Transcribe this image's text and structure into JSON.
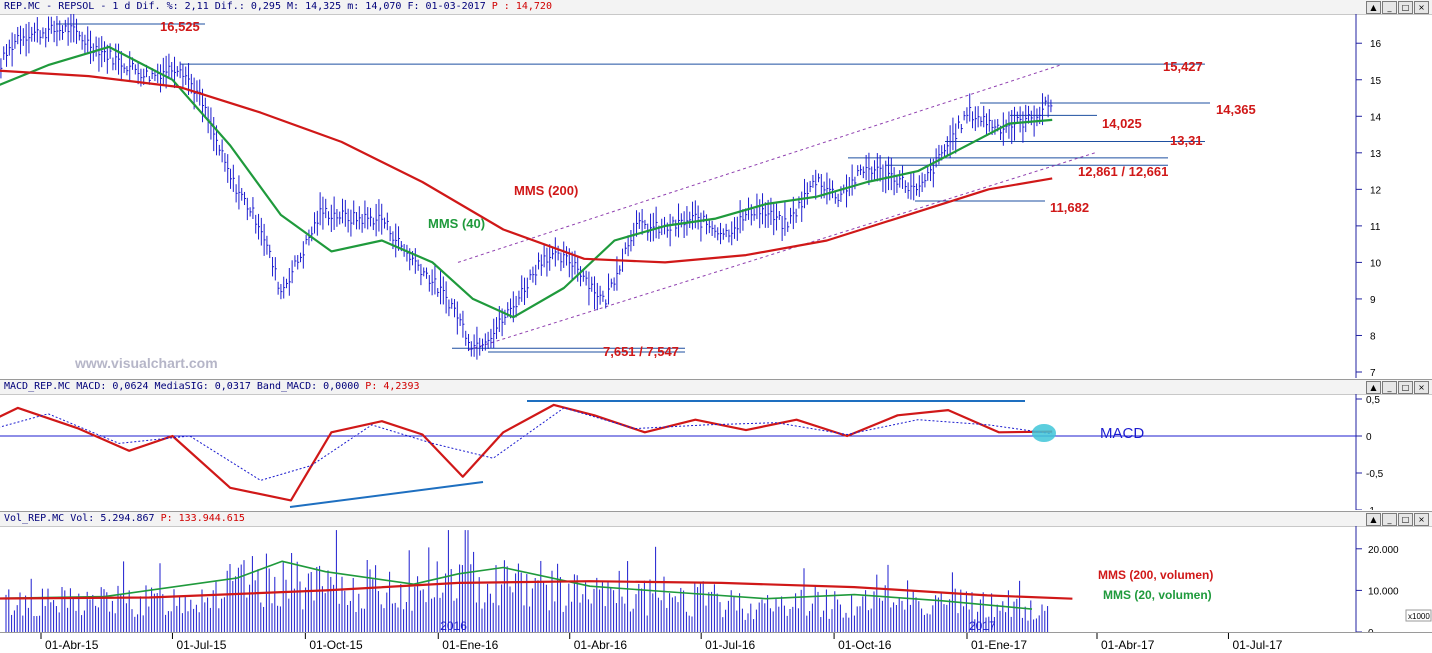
{
  "window": {
    "price_header": {
      "symbol": "REP.MC",
      "name": "REPSOL",
      "period": "1 d",
      "dif_pct": "Dif. %: 2,11",
      "dif": "Dif.: 0,295",
      "max": "M: 14,325",
      "min": "m: 14,070",
      "date": "F: 01-03-2017",
      "price": "P : 14,720"
    },
    "macd_header": {
      "label": "MACD_REP.MC",
      "macd": "MACD: 0,0624",
      "signal": "MediaSIG: 0,0317",
      "band": "Band_MACD: 0,0000",
      "price": "P: 4,2393"
    },
    "volume_header": {
      "label": "Vol_REP.MC",
      "vol": "Vol: 5.294.867",
      "price": "P: 133.944.615"
    },
    "buttons": {
      "up": "▲",
      "min": "_",
      "max": "□",
      "close": "×"
    },
    "watermark": "www.visualchart.com"
  },
  "chart_data": [
    {
      "type": "line",
      "title": "REP.MC - REPSOL",
      "series": [
        {
          "name": "REP.MC",
          "color": "#1c1ccf",
          "x": [
            "2015-02-09",
            "2015-03-02",
            "2015-03-16",
            "2015-04-20",
            "2015-05-04",
            "2015-05-25",
            "2015-06-15",
            "2015-07-06",
            "2015-07-20",
            "2015-08-10",
            "2015-08-31",
            "2015-09-14",
            "2015-09-28",
            "2015-10-12",
            "2015-11-02",
            "2015-11-23",
            "2015-12-07",
            "2015-12-21",
            "2016-01-11",
            "2016-01-25",
            "2016-02-08",
            "2016-02-22",
            "2016-03-14",
            "2016-04-04",
            "2016-04-25",
            "2016-05-16",
            "2016-06-06",
            "2016-06-27",
            "2016-07-18",
            "2016-08-08",
            "2016-08-29",
            "2016-09-19",
            "2016-10-03",
            "2016-10-24",
            "2016-11-14",
            "2016-11-28",
            "2016-12-12",
            "2017-01-02",
            "2017-01-23",
            "2017-02-13",
            "2017-03-01"
          ],
          "values": [
            15.1,
            15.3,
            16.2,
            16.4,
            16.0,
            15.5,
            15.1,
            15.4,
            14.5,
            12.3,
            11.0,
            9.2,
            10.2,
            11.4,
            11.2,
            11.2,
            10.4,
            9.8,
            8.8,
            7.7,
            8.1,
            8.8,
            10.2,
            10.0,
            8.9,
            11.0,
            10.9,
            11.2,
            10.8,
            11.5,
            11.0,
            12.3,
            11.8,
            12.6,
            12.3,
            11.9,
            12.8,
            14.1,
            13.7,
            13.9,
            14.4
          ]
        },
        {
          "name": "MMS (40)",
          "color": "#1f9a3c",
          "x": [
            "2015-02-09",
            "2015-04-06",
            "2015-05-18",
            "2015-07-01",
            "2015-08-10",
            "2015-09-14",
            "2015-10-19",
            "2015-11-23",
            "2015-12-28",
            "2016-01-25",
            "2016-02-22",
            "2016-03-28",
            "2016-05-02",
            "2016-06-06",
            "2016-07-11",
            "2016-08-15",
            "2016-09-19",
            "2016-10-24",
            "2016-11-28",
            "2016-12-27",
            "2017-01-30",
            "2017-03-01"
          ],
          "values": [
            14.5,
            15.4,
            15.9,
            15.0,
            13.2,
            11.3,
            10.3,
            10.6,
            10.0,
            9.0,
            8.5,
            9.3,
            10.6,
            11.0,
            11.2,
            11.6,
            11.8,
            12.2,
            12.5,
            13.1,
            13.8,
            13.9
          ]
        },
        {
          "name": "MMS (200)",
          "color": "#d01818",
          "x": [
            "2015-02-09",
            "2015-05-04",
            "2015-07-06",
            "2015-08-31",
            "2015-10-26",
            "2015-12-21",
            "2016-02-15",
            "2016-04-11",
            "2016-06-06",
            "2016-08-01",
            "2016-09-26",
            "2016-11-21",
            "2017-01-16",
            "2017-03-01"
          ],
          "values": [
            15.3,
            15.1,
            14.8,
            14.1,
            13.3,
            12.2,
            10.9,
            10.1,
            10.0,
            10.2,
            10.6,
            11.3,
            12.0,
            12.3
          ]
        }
      ],
      "annotations": {
        "levels": [
          "16,525",
          "15,427",
          "14,365",
          "14,025",
          "13,31",
          "12,861 / 12,661",
          "11,682",
          "7,651 / 7,547"
        ],
        "labels": [
          "MMS (200)",
          "MMS (40)"
        ]
      },
      "yticks": [
        "16",
        "15",
        "14",
        "13",
        "12",
        "11",
        "10",
        "9",
        "8",
        "7"
      ],
      "ylim": [
        7,
        16.8
      ]
    },
    {
      "type": "line",
      "title": "MACD_REP.MC",
      "series": [
        {
          "name": "MACD",
          "color": "#d01818",
          "x": [
            "2015-02-09",
            "2015-03-16",
            "2015-04-27",
            "2015-06-01",
            "2015-07-01",
            "2015-08-10",
            "2015-09-21",
            "2015-10-19",
            "2015-11-23",
            "2015-12-21",
            "2016-01-18",
            "2016-02-15",
            "2016-03-21",
            "2016-04-18",
            "2016-05-23",
            "2016-06-27",
            "2016-08-01",
            "2016-09-05",
            "2016-10-10",
            "2016-11-14",
            "2016-12-19",
            "2017-01-23",
            "2017-03-01"
          ],
          "values": [
            0.05,
            0.38,
            0.1,
            -0.2,
            0.0,
            -0.7,
            -0.87,
            0.05,
            0.2,
            0.02,
            -0.55,
            0.05,
            0.42,
            0.28,
            0.05,
            0.22,
            0.08,
            0.22,
            0.0,
            0.28,
            0.35,
            0.05,
            0.06
          ]
        },
        {
          "name": "MediaSIG",
          "color": "#1c1ccf",
          "x": [
            "2015-02-09",
            "2015-04-06",
            "2015-05-25",
            "2015-07-13",
            "2015-08-31",
            "2015-10-05",
            "2015-11-16",
            "2015-12-28",
            "2016-02-08",
            "2016-03-28",
            "2016-05-16",
            "2016-07-04",
            "2016-08-22",
            "2016-10-10",
            "2016-11-28",
            "2017-01-16",
            "2017-03-01"
          ],
          "values": [
            0.0,
            0.3,
            -0.1,
            0.0,
            -0.6,
            -0.4,
            0.15,
            -0.1,
            -0.3,
            0.38,
            0.1,
            0.15,
            0.18,
            0.02,
            0.22,
            0.15,
            0.03
          ]
        }
      ],
      "annotations": {
        "label": "MACD"
      },
      "yticks": [
        "0,5",
        "0",
        "-0,5",
        "-1"
      ],
      "ylim": [
        -1,
        0.5
      ]
    },
    {
      "type": "bar",
      "title": "Vol_REP.MC",
      "series": [
        {
          "name": "Vol",
          "color": "#1c1ccf",
          "x": [
            "2015-02",
            "2015-03",
            "2015-04",
            "2015-05",
            "2015-06",
            "2015-07",
            "2015-08",
            "2015-09",
            "2015-10",
            "2015-11",
            "2015-12",
            "2016-01",
            "2016-02",
            "2016-03",
            "2016-04",
            "2016-05",
            "2016-06",
            "2016-07",
            "2016-08",
            "2016-09",
            "2016-10",
            "2016-11",
            "2016-12",
            "2017-01",
            "2017-02"
          ],
          "values": [
            8500,
            9000,
            8800,
            9500,
            9000,
            10500,
            14000,
            16000,
            12500,
            13000,
            12000,
            16000,
            15500,
            14000,
            11000,
            10000,
            11000,
            9000,
            7500,
            9500,
            8000,
            10000,
            9000,
            8000,
            6500
          ]
        },
        {
          "name": "MMS (200, volumen)",
          "color": "#d01818",
          "x": [
            "2015-02",
            "2015-06",
            "2015-10",
            "2016-01",
            "2016-04",
            "2016-07",
            "2016-10",
            "2017-01",
            "2017-03"
          ],
          "values": [
            8000,
            8300,
            10000,
            11800,
            12200,
            11800,
            10800,
            8800,
            8000
          ]
        },
        {
          "name": "MMS (20, volumen)",
          "color": "#1f9a3c",
          "x": [
            "2015-02",
            "2015-05",
            "2015-08",
            "2015-09",
            "2015-10",
            "2015-12",
            "2016-01",
            "2016-02",
            "2016-04",
            "2016-06",
            "2016-08",
            "2016-10",
            "2016-12",
            "2017-02"
          ],
          "values": [
            8000,
            8500,
            13000,
            17000,
            14500,
            11500,
            14000,
            15500,
            11000,
            9500,
            8000,
            9000,
            7500,
            5500
          ]
        }
      ],
      "annotations": {
        "labels": [
          "MMS (200, volumen)",
          "MMS (20, volumen)"
        ],
        "multiplier": "x1000"
      },
      "yticks": [
        "20.000",
        "10.000",
        "0"
      ],
      "ylim": [
        0,
        25000
      ]
    }
  ],
  "time_axis": {
    "labels": [
      "01-Abr-15",
      "01-Jul-15",
      "01-Oct-15",
      "01-Ene-16",
      "01-Abr-16",
      "01-Jul-16",
      "01-Oct-16",
      "01-Ene-17",
      "01-Abr-17",
      "01-Jul-17"
    ],
    "year_marks": [
      "2016",
      "2017"
    ]
  }
}
